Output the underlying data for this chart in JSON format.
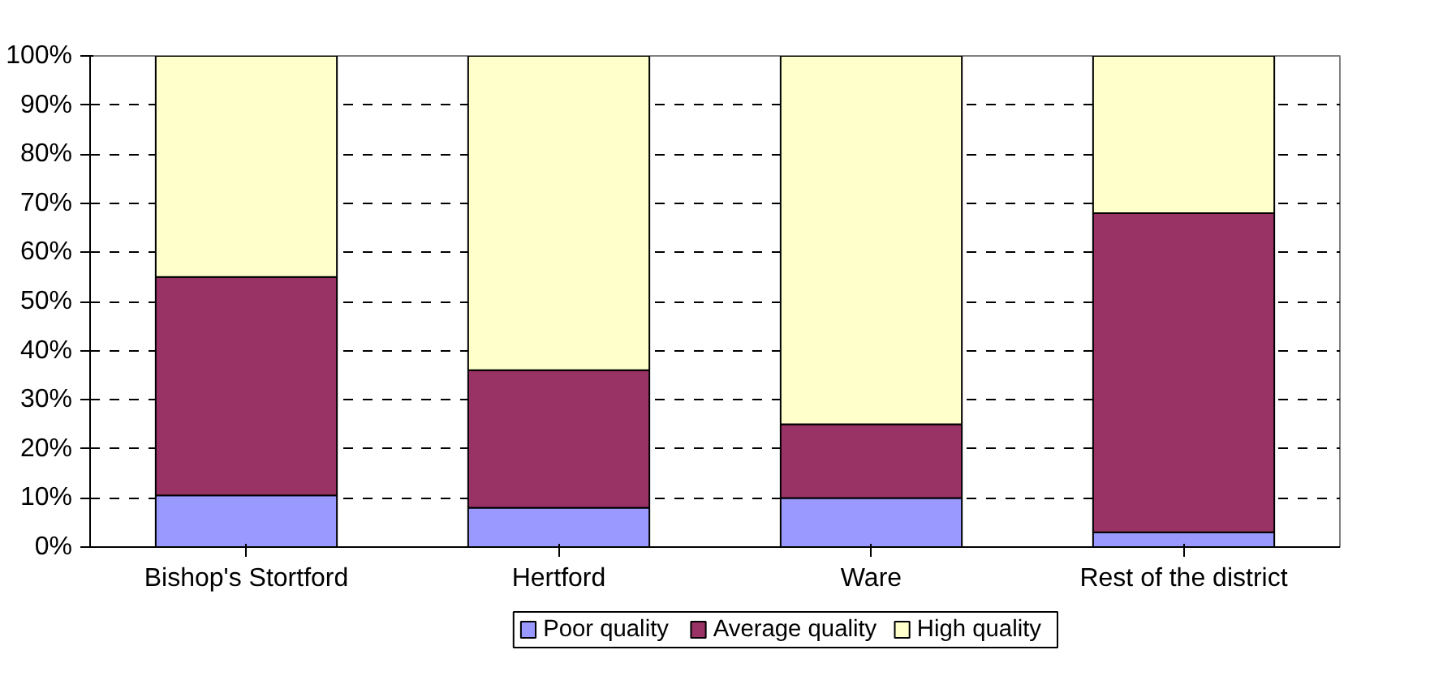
{
  "chart_data": {
    "type": "bar",
    "stacked": true,
    "categories": [
      "Bishop's Stortford",
      "Hertford",
      "Ware",
      "Rest of the district"
    ],
    "series": [
      {
        "name": "Poor quality",
        "color": "#9999ff",
        "values": [
          10.5,
          8,
          10,
          3
        ]
      },
      {
        "name": "Average quality",
        "color": "#993366",
        "values": [
          44.5,
          28,
          15,
          65
        ]
      },
      {
        "name": "High quality",
        "color": "#ffffcc",
        "values": [
          45,
          64,
          75,
          32
        ]
      }
    ],
    "ylim": [
      0,
      100
    ],
    "yticks": [
      {
        "value": 0,
        "label": "0%"
      },
      {
        "value": 10,
        "label": "10%"
      },
      {
        "value": 20,
        "label": "20%"
      },
      {
        "value": 30,
        "label": "30%"
      },
      {
        "value": 40,
        "label": "40%"
      },
      {
        "value": 50,
        "label": "50%"
      },
      {
        "value": 60,
        "label": "60%"
      },
      {
        "value": 70,
        "label": "70%"
      },
      {
        "value": 80,
        "label": "80%"
      },
      {
        "value": 90,
        "label": "90%"
      },
      {
        "value": 100,
        "label": "100%"
      }
    ],
    "grid": "y",
    "legend": "bottom"
  }
}
